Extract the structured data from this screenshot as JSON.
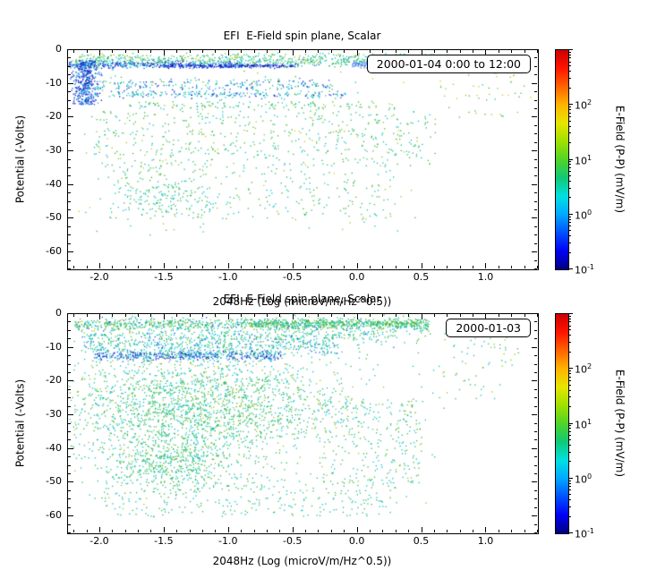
{
  "chart_data": {
    "type": "scatter",
    "description": "Two stacked scatter panels of spacecraft potential vs log spectral amplitude, colored by E-field amplitude (rainbow log colorbar). Point clouds are represented as generative density clusters approximating the visible distributions.",
    "palette": {
      "db": "#0014b4",
      "bl": "#2050e8",
      "lb": "#7e96ff",
      "cy": "#00c0cc",
      "tg": "#1ec08e",
      "gn": "#3cb83c",
      "yg": "#96c41e",
      "yl": "#d2cc00",
      "or": "#e07800"
    },
    "colorbar": {
      "label": "E-Field (P-P) (mV/m)",
      "tick_base": "10",
      "ticks": [
        {
          "exp": "2",
          "value": 2
        },
        {
          "exp": "1",
          "value": 1
        },
        {
          "exp": "0",
          "value": 0
        },
        {
          "exp": "-1",
          "value": -1
        }
      ],
      "exp_range": [
        -1,
        3
      ],
      "stops": [
        "#000082",
        "#0000f5",
        "#0050ff",
        "#00a8ff",
        "#00e0e0",
        "#10c878",
        "#50d428",
        "#a0e000",
        "#e6e600",
        "#ffb400",
        "#ff6400",
        "#ff1400",
        "#cc0000"
      ]
    },
    "panels": [
      {
        "title": "EFI  E-Field spin plane, Scalar",
        "legend": "2000-01-04 0:00 to 12:00",
        "xlabel": "2048Hz (Log (microV/m/Hz^0.5))",
        "ylabel": "Potential (-Volts)",
        "xlim": [
          -2.25,
          1.4
        ],
        "ylim": [
          0,
          -65
        ],
        "x_ticks": [
          {
            "v": -2.0,
            "label": "-2.0"
          },
          {
            "v": -1.5,
            "label": "-1.5"
          },
          {
            "v": -1.0,
            "label": "-1.0"
          },
          {
            "v": -0.5,
            "label": "-0.5"
          },
          {
            "v": 0.0,
            "label": "0.0"
          },
          {
            "v": 0.5,
            "label": "0.5"
          },
          {
            "v": 1.0,
            "label": "1.0"
          }
        ],
        "y_ticks": [
          {
            "v": 0,
            "label": "0"
          },
          {
            "v": -10,
            "label": "-10"
          },
          {
            "v": -20,
            "label": "-20"
          },
          {
            "v": -30,
            "label": "-30"
          },
          {
            "v": -40,
            "label": "-40"
          },
          {
            "v": -50,
            "label": "-50"
          },
          {
            "v": -60,
            "label": "-60"
          }
        ],
        "clusters": [
          {
            "n": 160,
            "x": [
              "u",
              -2.2,
              0.8
            ],
            "y": [
              "g",
              -1.6,
              0.35
            ],
            "c": [
              [
                "gn",
                4
              ],
              [
                "cy",
                3
              ],
              [
                "yg",
                3
              ]
            ]
          },
          {
            "n": 650,
            "x": [
              "u",
              -2.25,
              0.55
            ],
            "y": [
              "g",
              -3.1,
              0.8
            ],
            "c": [
              [
                "cy",
                35
              ],
              [
                "gn",
                28
              ],
              [
                "tg",
                20
              ],
              [
                "yg",
                12
              ],
              [
                "bl",
                5
              ]
            ]
          },
          {
            "n": 330,
            "x": [
              "u",
              -2.25,
              -0.9
            ],
            "y": [
              "g",
              -4.2,
              0.5
            ],
            "c": [
              [
                "bl",
                5
              ],
              [
                "db",
                3
              ],
              [
                "cy",
                2
              ]
            ]
          },
          {
            "n": 220,
            "x": [
              "u",
              -1.55,
              -0.45
            ],
            "y": [
              "g",
              -4.6,
              0.25
            ],
            "c": [
              [
                "db",
                6
              ],
              [
                "bl",
                4
              ]
            ]
          },
          {
            "n": 260,
            "x": [
              "u",
              -0.05,
              0.6
            ],
            "y": [
              "g",
              -4.2,
              0.45
            ],
            "c": [
              [
                "lb",
                55
              ],
              [
                "bl",
                28
              ],
              [
                "cy",
                17
              ]
            ]
          },
          {
            "n": 430,
            "x": [
              "g",
              -2.12,
              0.05
            ],
            "y": [
              "u",
              -16,
              -3
            ],
            "c": [
              [
                "bl",
                40
              ],
              [
                "db",
                35
              ],
              [
                "cy",
                25
              ]
            ]
          },
          {
            "n": 250,
            "x": [
              "u",
              -2.1,
              -0.2
            ],
            "y": [
              "g",
              -10.2,
              0.9
            ],
            "c": [
              [
                "cy",
                45
              ],
              [
                "bl",
                30
              ],
              [
                "gn",
                15
              ],
              [
                "db",
                10
              ]
            ]
          },
          {
            "n": 200,
            "x": [
              "u",
              -1.95,
              -0.1
            ],
            "y": [
              "g",
              -13.1,
              0.5
            ],
            "c": [
              [
                "cy",
                45
              ],
              [
                "bl",
                25
              ],
              [
                "tg",
                20
              ],
              [
                "db",
                10
              ]
            ]
          },
          {
            "n": 150,
            "x": [
              "u",
              -1.8,
              0.3
            ],
            "y": [
              "g",
              -16.2,
              0.7
            ],
            "c": [
              [
                "gn",
                40
              ],
              [
                "cy",
                30
              ],
              [
                "yg",
                20
              ],
              [
                "tg",
                10
              ]
            ]
          },
          {
            "n": 520,
            "x": [
              "u",
              -2.05,
              0.6
            ],
            "y": [
              "u",
              -35,
              -18
            ],
            "c": [
              [
                "gn",
                35
              ],
              [
                "cy",
                30
              ],
              [
                "tg",
                20
              ],
              [
                "yg",
                10
              ],
              [
                "yl",
                5
              ]
            ]
          },
          {
            "n": 250,
            "x": [
              "u",
              -1.95,
              0.25
            ],
            "y": [
              "u",
              -50,
              -35
            ],
            "c": [
              [
                "gn",
                40
              ],
              [
                "cy",
                30
              ],
              [
                "tg",
                20
              ],
              [
                "yg",
                10
              ]
            ]
          },
          {
            "n": 130,
            "x": [
              "g",
              -1.5,
              0.18
            ],
            "y": [
              "g",
              -43.5,
              2.5
            ],
            "c": [
              [
                "gn",
                40
              ],
              [
                "cy",
                35
              ],
              [
                "tg",
                25
              ]
            ]
          },
          {
            "n": 60,
            "x": [
              "u",
              0.6,
              1.35
            ],
            "y": [
              "u",
              -20,
              -2
            ],
            "c": [
              [
                "gn",
                40
              ],
              [
                "yg",
                30
              ],
              [
                "yl",
                20
              ],
              [
                "cy",
                10
              ]
            ]
          },
          {
            "n": 130,
            "x": [
              "u",
              -2.2,
              0.5
            ],
            "y": [
              "u",
              -55,
              -2
            ],
            "c": [
              [
                "gn",
                30
              ],
              [
                "cy",
                30
              ],
              [
                "yg",
                20
              ],
              [
                "yl",
                10
              ],
              [
                "tg",
                10
              ]
            ]
          }
        ]
      },
      {
        "title": "EFI  E-Field spin plane, Scalar",
        "legend": "2000-01-03",
        "xlabel": "2048Hz (Log (microV/m/Hz^0.5))",
        "ylabel": "Potential (-Volts)",
        "xlim": [
          -2.25,
          1.4
        ],
        "ylim": [
          0,
          -65
        ],
        "x_ticks": [
          {
            "v": -2.0,
            "label": "-2.0"
          },
          {
            "v": -1.5,
            "label": "-1.5"
          },
          {
            "v": -1.0,
            "label": "-1.0"
          },
          {
            "v": -0.5,
            "label": "-0.5"
          },
          {
            "v": 0.0,
            "label": "0.0"
          },
          {
            "v": 0.5,
            "label": "0.5"
          },
          {
            "v": 1.0,
            "label": "1.0"
          }
        ],
        "y_ticks": [
          {
            "v": 0,
            "label": "0"
          },
          {
            "v": -10,
            "label": "-10"
          },
          {
            "v": -20,
            "label": "-20"
          },
          {
            "v": -30,
            "label": "-30"
          },
          {
            "v": -40,
            "label": "-40"
          },
          {
            "v": -50,
            "label": "-50"
          },
          {
            "v": -60,
            "label": "-60"
          }
        ],
        "clusters": [
          {
            "n": 950,
            "x": [
              "u",
              -2.2,
              0.55
            ],
            "y": [
              "g",
              -3.0,
              1.0
            ],
            "c": [
              [
                "gn",
                32
              ],
              [
                "cy",
                30
              ],
              [
                "tg",
                20
              ],
              [
                "yg",
                12
              ],
              [
                "bl",
                6
              ]
            ]
          },
          {
            "n": 400,
            "x": [
              "u",
              -0.85,
              0.55
            ],
            "y": [
              "g",
              -2.6,
              0.7
            ],
            "c": [
              [
                "gn",
                50
              ],
              [
                "tg",
                25
              ],
              [
                "yg",
                15
              ],
              [
                "cy",
                10
              ]
            ]
          },
          {
            "n": 330,
            "x": [
              "u",
              -2.1,
              0.3
            ],
            "y": [
              "g",
              -6.5,
              1.0
            ],
            "c": [
              [
                "cy",
                40
              ],
              [
                "gn",
                30
              ],
              [
                "tg",
                20
              ],
              [
                "bl",
                10
              ]
            ]
          },
          {
            "n": 430,
            "x": [
              "u",
              -2.05,
              -0.6
            ],
            "y": [
              "g",
              -12.2,
              0.7
            ],
            "c": [
              [
                "bl",
                40
              ],
              [
                "db",
                30
              ],
              [
                "cy",
                30
              ]
            ]
          },
          {
            "n": 470,
            "x": [
              "u",
              -2.15,
              -0.15
            ],
            "y": [
              "g",
              -9.5,
              1.5
            ],
            "c": [
              [
                "cy",
                50
              ],
              [
                "tg",
                20
              ],
              [
                "bl",
                15
              ],
              [
                "gn",
                15
              ]
            ]
          },
          {
            "n": 2100,
            "x": [
              "g",
              -1.25,
              0.55
            ],
            "y": [
              "g",
              -27,
              8
            ],
            "c": [
              [
                "gn",
                35
              ],
              [
                "cy",
                30
              ],
              [
                "tg",
                25
              ],
              [
                "yg",
                10
              ]
            ]
          },
          {
            "n": 480,
            "x": [
              "g",
              -1.45,
              0.25
            ],
            "y": [
              "g",
              -44,
              4
            ],
            "c": [
              [
                "gn",
                45
              ],
              [
                "tg",
                30
              ],
              [
                "cy",
                25
              ]
            ]
          },
          {
            "n": 280,
            "x": [
              "u",
              -2.0,
              0.3
            ],
            "y": [
              "u",
              -60,
              -48
            ],
            "c": [
              [
                "gn",
                40
              ],
              [
                "cy",
                30
              ],
              [
                "tg",
                30
              ]
            ]
          },
          {
            "n": 240,
            "x": [
              "u",
              -0.3,
              0.5
            ],
            "y": [
              "u",
              -50,
              -25
            ],
            "c": [
              [
                "gn",
                40
              ],
              [
                "cy",
                30
              ],
              [
                "tg",
                20
              ],
              [
                "yg",
                10
              ]
            ]
          },
          {
            "n": 80,
            "x": [
              "u",
              0.45,
              1.25
            ],
            "y": [
              "u",
              -25,
              -2
            ],
            "c": [
              [
                "gn",
                40
              ],
              [
                "yg",
                25
              ],
              [
                "cy",
                20
              ],
              [
                "tg",
                15
              ]
            ]
          },
          {
            "n": 200,
            "x": [
              "u",
              -2.2,
              0.6
            ],
            "y": [
              "u",
              -60,
              -2
            ],
            "c": [
              [
                "gn",
                30
              ],
              [
                "cy",
                30
              ],
              [
                "tg",
                20
              ],
              [
                "yg",
                20
              ]
            ]
          }
        ]
      }
    ]
  }
}
